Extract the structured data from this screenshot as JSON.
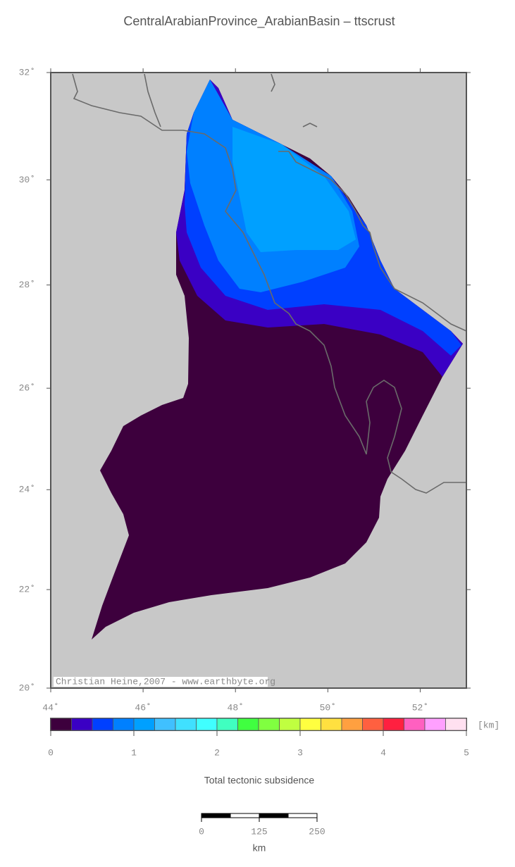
{
  "title": "CentralArabianProvince_ArabianBasin – ttscrust",
  "map": {
    "xlim": [
      44,
      53
    ],
    "ylim": [
      20,
      32
    ],
    "xticks": [
      {
        "value": 44,
        "label": "44˚"
      },
      {
        "value": 46,
        "label": "46˚"
      },
      {
        "value": 48,
        "label": "48˚"
      },
      {
        "value": 50,
        "label": "50˚"
      },
      {
        "value": 52,
        "label": "52˚"
      }
    ],
    "yticks": [
      {
        "value": 20,
        "label": "20˚"
      },
      {
        "value": 22,
        "label": "22˚"
      },
      {
        "value": 24,
        "label": "24˚"
      },
      {
        "value": 26,
        "label": "26˚"
      },
      {
        "value": 28,
        "label": "28˚"
      },
      {
        "value": 30,
        "label": "30˚"
      },
      {
        "value": 32,
        "label": "32˚"
      }
    ],
    "credit": "Christian Heine,2007 - www.earthbyte.org"
  },
  "colorbar": {
    "lim": [
      0,
      5
    ],
    "ticks": [
      0,
      1,
      2,
      3,
      4,
      5
    ],
    "unit": "[km]",
    "label": "Total tectonic subsidence",
    "colors": [
      "#3d003d",
      "#3a00c4",
      "#0040ff",
      "#0080ff",
      "#00a0ff",
      "#40c0ff",
      "#40e0ff",
      "#40ffff",
      "#40ffc0",
      "#40ff40",
      "#80ff40",
      "#c0ff40",
      "#ffff40",
      "#ffe040",
      "#ffa040",
      "#ff6040",
      "#ff2040",
      "#ff60c0",
      "#ffa0ff",
      "#ffe0f0"
    ]
  },
  "scalebar": {
    "lim": [
      0,
      250
    ],
    "ticks": [
      0,
      125,
      250
    ],
    "unit": "km"
  }
}
